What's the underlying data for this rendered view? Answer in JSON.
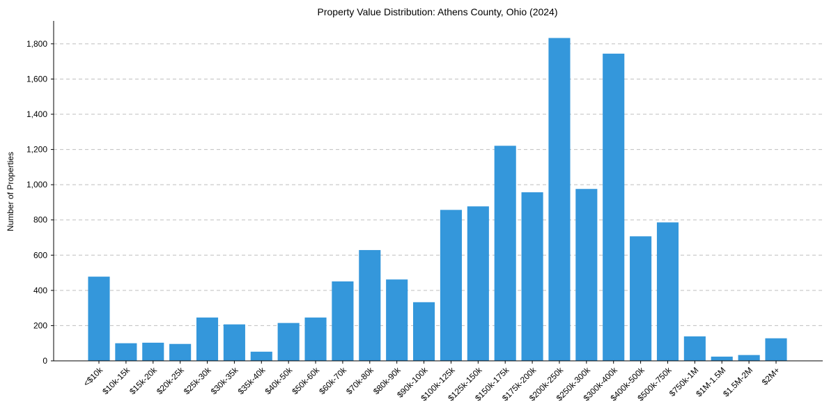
{
  "chart_data": {
    "type": "bar",
    "title": "Property Value Distribution: Athens County, Ohio (2024)",
    "xlabel": "",
    "ylabel": "Number of Properties",
    "ylim": [
      0,
      1930
    ],
    "yticks": [
      0,
      200,
      400,
      600,
      800,
      1000,
      1200,
      1400,
      1600,
      1800
    ],
    "ytick_labels": [
      "0",
      "200",
      "400",
      "600",
      "800",
      "1,000",
      "1,200",
      "1,400",
      "1,600",
      "1,800"
    ],
    "grid": "y-dashed",
    "bar_color": "#3497db",
    "categories": [
      "<$10k",
      "$10k-15k",
      "$15k-20k",
      "$20k-25k",
      "$25k-30k",
      "$30k-35k",
      "$35k-40k",
      "$40k-50k",
      "$50k-60k",
      "$60k-70k",
      "$70k-80k",
      "$80k-90k",
      "$90k-100k",
      "$100k-125k",
      "$125k-150k",
      "$150k-175k",
      "$175k-200k",
      "$200k-250k",
      "$250k-300k",
      "$300k-400k",
      "$400k-500k",
      "$500k-750k",
      "$750k-1M",
      "$1M-1.5M",
      "$1.5M-2M",
      "$2M+"
    ],
    "values": [
      478,
      100,
      103,
      96,
      246,
      207,
      52,
      215,
      246,
      451,
      629,
      462,
      333,
      857,
      877,
      1221,
      957,
      1833,
      976,
      1744,
      707,
      786,
      139,
      24,
      33,
      128
    ]
  }
}
